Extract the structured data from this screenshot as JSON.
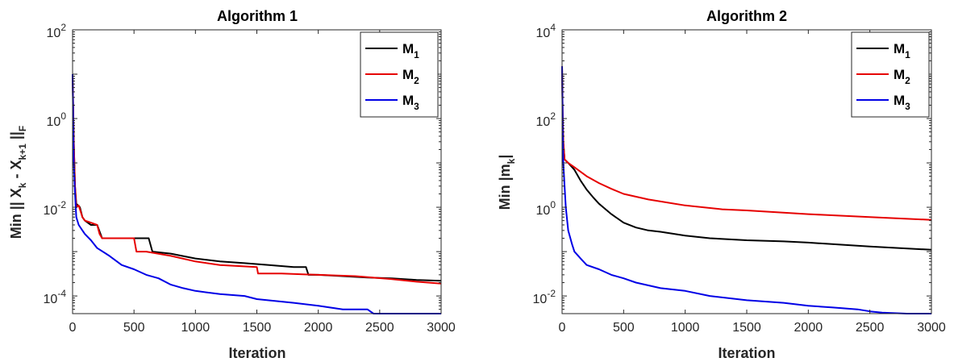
{
  "chart_data": [
    {
      "type": "line",
      "title": "Algorithm 1",
      "xlabel": "Iteration",
      "ylabel": {
        "text": "Min || X",
        "sub1": "k",
        "mid": " - X",
        "sub2": "k+1",
        "tail": " ||",
        "sub3": "F"
      },
      "xlim": [
        0,
        3000
      ],
      "ylim": [
        4e-05,
        100
      ],
      "yscale": "log",
      "xticks": [
        0,
        500,
        1000,
        1500,
        2000,
        2500,
        3000
      ],
      "xtick_labels": [
        "0",
        "500",
        "1000",
        "1500",
        "2000",
        "2500",
        "3000"
      ],
      "yticks": [
        {
          "value": 0.0001,
          "base": "10",
          "exp": "-4"
        },
        {
          "value": 0.01,
          "base": "10",
          "exp": "-2"
        },
        {
          "value": 1,
          "base": "10",
          "exp": "0"
        },
        {
          "value": 100,
          "base": "10",
          "exp": "2"
        }
      ],
      "grid": false,
      "legend_position": "top-right",
      "series": [
        {
          "name": "M",
          "sub": "1",
          "color": "#000000",
          "x": [
            0,
            10,
            20,
            30,
            60,
            80,
            100,
            150,
            200,
            240,
            260,
            400,
            620,
            650,
            800,
            1000,
            1200,
            1400,
            1600,
            1800,
            1900,
            1920,
            2000,
            2200,
            2400,
            2600,
            2800,
            3000
          ],
          "y": [
            10,
            0.3,
            0.03,
            0.012,
            0.01,
            0.006,
            0.005,
            0.004,
            0.004,
            0.002,
            0.002,
            0.002,
            0.002,
            0.001,
            0.0009,
            0.0007,
            0.0006,
            0.00055,
            0.0005,
            0.00045,
            0.00045,
            0.0003,
            0.0003,
            0.00028,
            0.00026,
            0.00025,
            0.00023,
            0.00022
          ]
        },
        {
          "name": "M",
          "sub": "2",
          "color": "#e60000",
          "x": [
            0,
            10,
            20,
            30,
            50,
            80,
            100,
            150,
            200,
            220,
            240,
            300,
            500,
            520,
            600,
            800,
            1000,
            1200,
            1500,
            1510,
            1700,
            2000,
            2300,
            2600,
            2800,
            3000
          ],
          "y": [
            10,
            0.3,
            0.03,
            0.01,
            0.011,
            0.006,
            0.005,
            0.0045,
            0.004,
            0.0025,
            0.002,
            0.002,
            0.002,
            0.001,
            0.001,
            0.0008,
            0.0006,
            0.0005,
            0.00045,
            0.00032,
            0.00032,
            0.0003,
            0.00028,
            0.00024,
            0.00021,
            0.00019
          ]
        },
        {
          "name": "M",
          "sub": "3",
          "color": "#0000e6",
          "x": [
            0,
            10,
            20,
            30,
            50,
            80,
            100,
            150,
            200,
            300,
            400,
            500,
            600,
            700,
            800,
            900,
            1000,
            1200,
            1400,
            1500,
            1800,
            2000,
            2200,
            2400,
            2450,
            2600,
            2800,
            3000
          ],
          "y": [
            10,
            0.1,
            0.02,
            0.006,
            0.004,
            0.003,
            0.0025,
            0.0018,
            0.0012,
            0.0008,
            0.0005,
            0.0004,
            0.0003,
            0.00025,
            0.00018,
            0.00015,
            0.00013,
            0.00011,
            0.0001,
            8.5e-05,
            7e-05,
            6e-05,
            5e-05,
            5e-05,
            4e-05,
            4e-05,
            4e-05,
            4e-05
          ]
        }
      ]
    },
    {
      "type": "line",
      "title": "Algorithm 2",
      "xlabel": "Iteration",
      "ylabel": {
        "text": "Min |m",
        "sub1": "k",
        "tail": "|"
      },
      "xlim": [
        0,
        3000
      ],
      "ylim": [
        0.004,
        10000
      ],
      "yscale": "log",
      "xticks": [
        0,
        500,
        1000,
        1500,
        2000,
        2500,
        3000
      ],
      "xtick_labels": [
        "0",
        "500",
        "1000",
        "1500",
        "2000",
        "2500",
        "3000"
      ],
      "yticks": [
        {
          "value": 0.01,
          "base": "10",
          "exp": "-2"
        },
        {
          "value": 1,
          "base": "10",
          "exp": "0"
        },
        {
          "value": 100,
          "base": "10",
          "exp": "2"
        },
        {
          "value": 10000,
          "base": "10",
          "exp": "4"
        }
      ],
      "grid": false,
      "legend_position": "top-right",
      "series": [
        {
          "name": "M",
          "sub": "1",
          "color": "#000000",
          "x": [
            0,
            5,
            10,
            20,
            50,
            100,
            150,
            200,
            250,
            300,
            400,
            500,
            600,
            700,
            800,
            1000,
            1200,
            1500,
            1800,
            2000,
            2500,
            3000
          ],
          "y": [
            1500,
            100,
            30,
            12,
            10,
            7,
            4,
            2.5,
            1.7,
            1.2,
            0.7,
            0.45,
            0.35,
            0.3,
            0.28,
            0.23,
            0.2,
            0.18,
            0.17,
            0.16,
            0.13,
            0.11
          ]
        },
        {
          "name": "M",
          "sub": "2",
          "color": "#e60000",
          "x": [
            0,
            5,
            10,
            20,
            50,
            100,
            200,
            300,
            400,
            500,
            700,
            1000,
            1300,
            1500,
            2000,
            2500,
            3000
          ],
          "y": [
            1500,
            100,
            30,
            12,
            10,
            8,
            5,
            3.5,
            2.6,
            2,
            1.5,
            1.1,
            0.9,
            0.85,
            0.7,
            0.6,
            0.52
          ]
        },
        {
          "name": "M",
          "sub": "3",
          "color": "#0000e6",
          "x": [
            0,
            5,
            10,
            20,
            30,
            50,
            80,
            100,
            150,
            200,
            300,
            400,
            500,
            600,
            800,
            1000,
            1200,
            1500,
            1800,
            2000,
            2200,
            2400,
            2500,
            2600,
            2800,
            3000
          ],
          "y": [
            1500,
            60,
            10,
            3,
            1,
            0.3,
            0.15,
            0.1,
            0.07,
            0.05,
            0.04,
            0.03,
            0.025,
            0.02,
            0.015,
            0.013,
            0.01,
            0.008,
            0.007,
            0.006,
            0.0055,
            0.005,
            0.0045,
            0.0042,
            0.004,
            0.004
          ]
        }
      ]
    }
  ]
}
